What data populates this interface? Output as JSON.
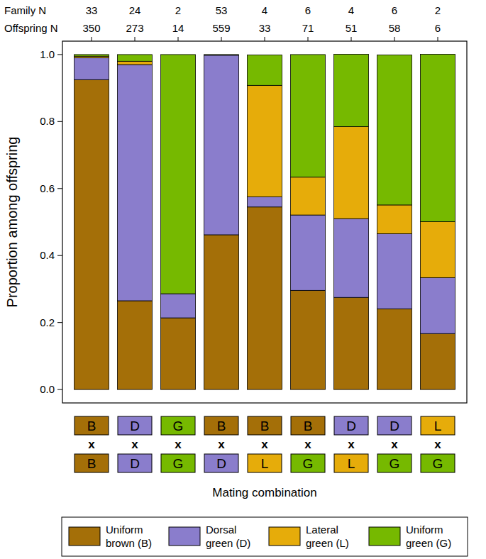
{
  "chart_data": {
    "type": "bar",
    "stacked": true,
    "legend": "bottom",
    "y_label": "Proportion among offspring",
    "x_label": "Mating combination",
    "categories": [
      [
        "B",
        "B"
      ],
      [
        "D",
        "D"
      ],
      [
        "G",
        "G"
      ],
      [
        "B",
        "D"
      ],
      [
        "B",
        "L"
      ],
      [
        "B",
        "G"
      ],
      [
        "D",
        "L"
      ],
      [
        "D",
        "G"
      ],
      [
        "L",
        "G"
      ]
    ],
    "cross_symbol": "x",
    "family_n": {
      "label": "Family N",
      "values": [
        33,
        24,
        2,
        53,
        4,
        6,
        4,
        6,
        2
      ]
    },
    "offspring_n": {
      "label": "Offspring N",
      "values": [
        350,
        273,
        14,
        559,
        33,
        71,
        51,
        58,
        6
      ]
    },
    "ylim": [
      -0.04,
      1.04
    ],
    "yticks": [
      {
        "value": 0,
        "label": "0.0"
      },
      {
        "value": 0.2,
        "label": "0.2"
      },
      {
        "value": 0.4,
        "label": "0.4"
      },
      {
        "value": 0.6,
        "label": "0.6"
      },
      {
        "value": 0.8,
        "label": "0.8"
      },
      {
        "value": 1,
        "label": "1.0"
      }
    ],
    "series": [
      {
        "name": "Uniform brown (B)",
        "code": "B",
        "color": "#a46f08",
        "values": [
          0.925,
          0.265,
          0.214,
          0.462,
          0.545,
          0.296,
          0.275,
          0.241,
          0.167
        ]
      },
      {
        "name": "Dorsal green (D)",
        "code": "D",
        "color": "#8a7dcc",
        "values": [
          0.065,
          0.705,
          0.072,
          0.536,
          0.03,
          0.225,
          0.235,
          0.224,
          0.167
        ]
      },
      {
        "name": "Lateral green (L)",
        "code": "L",
        "color": "#e6ac0a",
        "values": [
          0.005,
          0.01,
          0,
          0,
          0.333,
          0.113,
          0.275,
          0.086,
          0.167
        ]
      },
      {
        "name": "Uniform green (G)",
        "code": "G",
        "color": "#76b900",
        "values": [
          0.005,
          0.02,
          0.714,
          0.002,
          0.091,
          0.366,
          0.216,
          0.448,
          0.5
        ]
      }
    ]
  }
}
